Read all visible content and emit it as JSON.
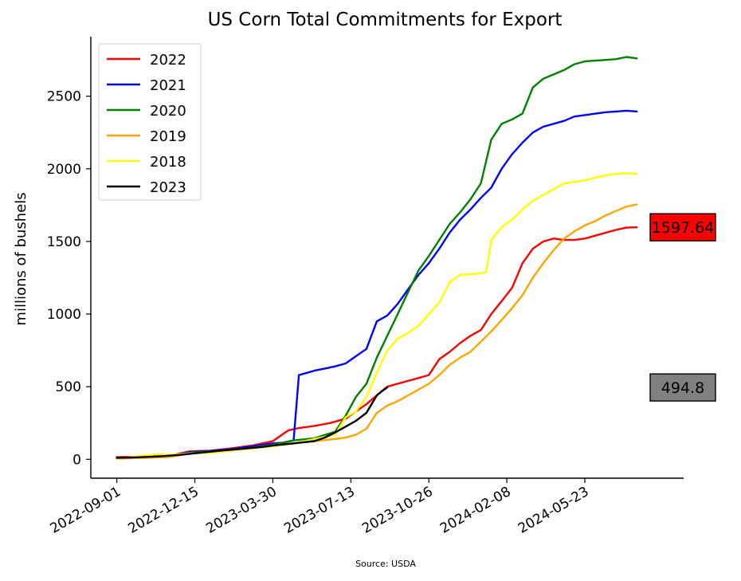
{
  "chart_data": {
    "type": "line",
    "title": "US Corn Total Commitments for Export",
    "xlabel": "",
    "ylabel": "millions of bushels",
    "source": "Source: USDA",
    "x_ticks": [
      "2022-09-01",
      "2022-12-15",
      "2023-03-30",
      "2023-07-13",
      "2023-10-26",
      "2024-02-08",
      "2024-05-23"
    ],
    "x_tick_weeks": [
      0,
      15,
      30,
      45,
      60,
      75,
      90
    ],
    "y_ticks": [
      0,
      500,
      1000,
      1500,
      2000,
      2500
    ],
    "ylim": [
      -130,
      2910
    ],
    "xlim": [
      -5,
      109
    ],
    "legend_position": "top-left",
    "grid": false,
    "x_unit": "weeks from 2022-09-01",
    "series": [
      {
        "name": "2022",
        "color": "#ff0000",
        "points": [
          [
            0,
            15
          ],
          [
            5,
            18
          ],
          [
            10,
            25
          ],
          [
            14,
            55
          ],
          [
            18,
            60
          ],
          [
            22,
            75
          ],
          [
            26,
            95
          ],
          [
            30,
            125
          ],
          [
            33,
            200
          ],
          [
            35,
            215
          ],
          [
            38,
            230
          ],
          [
            41,
            250
          ],
          [
            44,
            280
          ],
          [
            46,
            330
          ],
          [
            48,
            380
          ],
          [
            50,
            440
          ],
          [
            52,
            500
          ],
          [
            54,
            520
          ],
          [
            56,
            540
          ],
          [
            58,
            560
          ],
          [
            60,
            580
          ],
          [
            62,
            690
          ],
          [
            64,
            740
          ],
          [
            66,
            800
          ],
          [
            68,
            850
          ],
          [
            70,
            890
          ],
          [
            72,
            1000
          ],
          [
            74,
            1090
          ],
          [
            76,
            1180
          ],
          [
            78,
            1350
          ],
          [
            80,
            1450
          ],
          [
            82,
            1500
          ],
          [
            84,
            1520
          ],
          [
            86,
            1510
          ],
          [
            88,
            1510
          ],
          [
            90,
            1520
          ],
          [
            92,
            1540
          ],
          [
            94,
            1560
          ],
          [
            96,
            1580
          ],
          [
            98,
            1595
          ],
          [
            100,
            1597.64
          ]
        ]
      },
      {
        "name": "2021",
        "color": "#0000ff",
        "points": [
          [
            0,
            10
          ],
          [
            5,
            15
          ],
          [
            10,
            22
          ],
          [
            14,
            50
          ],
          [
            18,
            58
          ],
          [
            22,
            70
          ],
          [
            26,
            90
          ],
          [
            30,
            110
          ],
          [
            32,
            115
          ],
          [
            34,
            130
          ],
          [
            35,
            580
          ],
          [
            36,
            590
          ],
          [
            38,
            610
          ],
          [
            40,
            625
          ],
          [
            42,
            640
          ],
          [
            44,
            660
          ],
          [
            46,
            710
          ],
          [
            48,
            760
          ],
          [
            50,
            950
          ],
          [
            52,
            990
          ],
          [
            54,
            1070
          ],
          [
            56,
            1170
          ],
          [
            58,
            1270
          ],
          [
            60,
            1350
          ],
          [
            62,
            1450
          ],
          [
            64,
            1560
          ],
          [
            66,
            1650
          ],
          [
            68,
            1720
          ],
          [
            70,
            1800
          ],
          [
            72,
            1870
          ],
          [
            74,
            2000
          ],
          [
            76,
            2100
          ],
          [
            78,
            2180
          ],
          [
            80,
            2250
          ],
          [
            82,
            2290
          ],
          [
            84,
            2310
          ],
          [
            86,
            2330
          ],
          [
            88,
            2360
          ],
          [
            90,
            2370
          ],
          [
            92,
            2380
          ],
          [
            94,
            2390
          ],
          [
            96,
            2395
          ],
          [
            98,
            2400
          ],
          [
            100,
            2395
          ]
        ]
      },
      {
        "name": "2020",
        "color": "#008000",
        "points": [
          [
            0,
            5
          ],
          [
            5,
            15
          ],
          [
            10,
            20
          ],
          [
            14,
            45
          ],
          [
            18,
            55
          ],
          [
            22,
            65
          ],
          [
            26,
            80
          ],
          [
            30,
            100
          ],
          [
            34,
            130
          ],
          [
            38,
            145
          ],
          [
            42,
            190
          ],
          [
            44,
            300
          ],
          [
            46,
            430
          ],
          [
            48,
            520
          ],
          [
            50,
            700
          ],
          [
            52,
            850
          ],
          [
            54,
            1000
          ],
          [
            56,
            1150
          ],
          [
            58,
            1300
          ],
          [
            60,
            1400
          ],
          [
            62,
            1510
          ],
          [
            64,
            1620
          ],
          [
            66,
            1700
          ],
          [
            68,
            1790
          ],
          [
            70,
            1900
          ],
          [
            72,
            2200
          ],
          [
            74,
            2310
          ],
          [
            76,
            2340
          ],
          [
            78,
            2380
          ],
          [
            80,
            2560
          ],
          [
            82,
            2620
          ],
          [
            84,
            2650
          ],
          [
            86,
            2680
          ],
          [
            88,
            2720
          ],
          [
            90,
            2740
          ],
          [
            92,
            2745
          ],
          [
            94,
            2750
          ],
          [
            96,
            2755
          ],
          [
            98,
            2770
          ],
          [
            100,
            2760
          ]
        ]
      },
      {
        "name": "2019",
        "color": "#ffa500",
        "points": [
          [
            0,
            5
          ],
          [
            5,
            10
          ],
          [
            10,
            15
          ],
          [
            14,
            40
          ],
          [
            18,
            45
          ],
          [
            22,
            60
          ],
          [
            26,
            75
          ],
          [
            30,
            95
          ],
          [
            34,
            110
          ],
          [
            38,
            125
          ],
          [
            42,
            140
          ],
          [
            44,
            150
          ],
          [
            46,
            170
          ],
          [
            48,
            210
          ],
          [
            50,
            320
          ],
          [
            52,
            370
          ],
          [
            54,
            400
          ],
          [
            56,
            440
          ],
          [
            58,
            480
          ],
          [
            60,
            520
          ],
          [
            62,
            580
          ],
          [
            64,
            650
          ],
          [
            66,
            700
          ],
          [
            68,
            740
          ],
          [
            70,
            810
          ],
          [
            72,
            880
          ],
          [
            74,
            960
          ],
          [
            76,
            1040
          ],
          [
            78,
            1130
          ],
          [
            80,
            1250
          ],
          [
            82,
            1350
          ],
          [
            84,
            1440
          ],
          [
            86,
            1520
          ],
          [
            88,
            1570
          ],
          [
            90,
            1610
          ],
          [
            92,
            1640
          ],
          [
            94,
            1680
          ],
          [
            96,
            1710
          ],
          [
            98,
            1740
          ],
          [
            100,
            1755
          ]
        ]
      },
      {
        "name": "2018",
        "color": "#ffff00",
        "points": [
          [
            0,
            5
          ],
          [
            5,
            25
          ],
          [
            8,
            35
          ],
          [
            10,
            30
          ],
          [
            14,
            40
          ],
          [
            18,
            45
          ],
          [
            22,
            60
          ],
          [
            26,
            75
          ],
          [
            30,
            90
          ],
          [
            34,
            110
          ],
          [
            38,
            140
          ],
          [
            42,
            170
          ],
          [
            44,
            290
          ],
          [
            46,
            330
          ],
          [
            48,
            430
          ],
          [
            50,
            600
          ],
          [
            52,
            750
          ],
          [
            54,
            830
          ],
          [
            56,
            870
          ],
          [
            58,
            920
          ],
          [
            60,
            1000
          ],
          [
            62,
            1080
          ],
          [
            64,
            1220
          ],
          [
            66,
            1270
          ],
          [
            68,
            1275
          ],
          [
            70,
            1280
          ],
          [
            71,
            1290
          ],
          [
            72,
            1510
          ],
          [
            74,
            1600
          ],
          [
            76,
            1650
          ],
          [
            78,
            1720
          ],
          [
            80,
            1780
          ],
          [
            82,
            1820
          ],
          [
            84,
            1860
          ],
          [
            86,
            1900
          ],
          [
            88,
            1910
          ],
          [
            90,
            1920
          ],
          [
            92,
            1940
          ],
          [
            94,
            1955
          ],
          [
            96,
            1965
          ],
          [
            98,
            1970
          ],
          [
            100,
            1965
          ]
        ]
      },
      {
        "name": "2023",
        "color": "#000000",
        "points": [
          [
            0,
            10
          ],
          [
            4,
            14
          ],
          [
            8,
            20
          ],
          [
            12,
            30
          ],
          [
            16,
            45
          ],
          [
            20,
            60
          ],
          [
            24,
            72
          ],
          [
            28,
            85
          ],
          [
            30,
            95
          ],
          [
            34,
            110
          ],
          [
            38,
            125
          ],
          [
            40,
            150
          ],
          [
            42,
            185
          ],
          [
            44,
            225
          ],
          [
            46,
            265
          ],
          [
            48,
            320
          ],
          [
            50,
            440
          ],
          [
            51,
            470
          ],
          [
            52,
            494.8
          ]
        ]
      }
    ],
    "callouts": [
      {
        "text": "1597.64",
        "value": 1597.64,
        "background": "#ff0000"
      },
      {
        "text": "494.8",
        "value": 494.8,
        "background": "#808080"
      }
    ]
  }
}
